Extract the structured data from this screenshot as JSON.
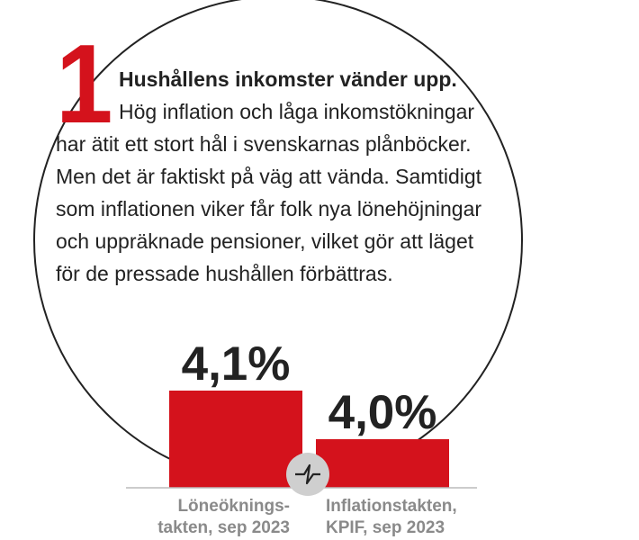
{
  "number": "1",
  "text": {
    "lead": "Hushållens inkomster vänder upp.",
    "body": "Hög inflation och låga inkomstökningar har ätit ett stort hål i svenskarnas plånböcker. Men det är faktiskt på väg att vända. Samtidigt som inflationen viker får folk nya lönehöjningar och uppräknade pensioner, vilket gör att läget för de pressade hushållen förbättras."
  },
  "colors": {
    "accent": "#d4121c",
    "text": "#222222",
    "category_text": "#8a8a8a",
    "axis": "#bbbbbb",
    "icon_bg": "#cfcfcf"
  },
  "chart_data": {
    "type": "bar",
    "categories": [
      "Löneöknings-takten, sep 2023",
      "Inflationstakten, KPIF, sep 2023"
    ],
    "category_lines": [
      [
        "Löneöknings-",
        "takten, sep 2023"
      ],
      [
        "Inflationstakten,",
        "KPIF, sep 2023"
      ]
    ],
    "values": [
      4.1,
      4.0
    ],
    "value_labels": [
      "4,1%",
      "4,0%"
    ],
    "axis_break": true,
    "y_start": 3.9
  }
}
